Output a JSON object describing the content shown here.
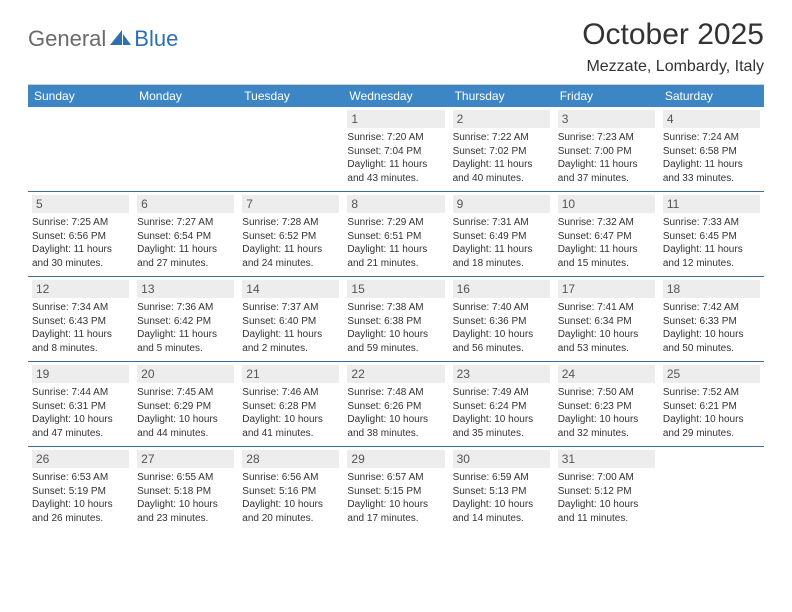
{
  "logo": {
    "part1": "General",
    "part2": "Blue"
  },
  "title": "October 2025",
  "location": "Mezzate, Lombardy, Italy",
  "colors": {
    "header_bg": "#3d86c6",
    "header_text": "#ffffff",
    "row_border": "#3d6a9a",
    "daynum_bg": "#ededed",
    "daynum_text": "#555555",
    "body_text": "#333333",
    "logo_gray": "#6a6a6a",
    "logo_blue": "#2f6fb0"
  },
  "day_headers": [
    "Sunday",
    "Monday",
    "Tuesday",
    "Wednesday",
    "Thursday",
    "Friday",
    "Saturday"
  ],
  "weeks": [
    [
      null,
      null,
      null,
      {
        "n": "1",
        "sunrise": "7:20 AM",
        "sunset": "7:04 PM",
        "daylight": "11 hours and 43 minutes."
      },
      {
        "n": "2",
        "sunrise": "7:22 AM",
        "sunset": "7:02 PM",
        "daylight": "11 hours and 40 minutes."
      },
      {
        "n": "3",
        "sunrise": "7:23 AM",
        "sunset": "7:00 PM",
        "daylight": "11 hours and 37 minutes."
      },
      {
        "n": "4",
        "sunrise": "7:24 AM",
        "sunset": "6:58 PM",
        "daylight": "11 hours and 33 minutes."
      }
    ],
    [
      {
        "n": "5",
        "sunrise": "7:25 AM",
        "sunset": "6:56 PM",
        "daylight": "11 hours and 30 minutes."
      },
      {
        "n": "6",
        "sunrise": "7:27 AM",
        "sunset": "6:54 PM",
        "daylight": "11 hours and 27 minutes."
      },
      {
        "n": "7",
        "sunrise": "7:28 AM",
        "sunset": "6:52 PM",
        "daylight": "11 hours and 24 minutes."
      },
      {
        "n": "8",
        "sunrise": "7:29 AM",
        "sunset": "6:51 PM",
        "daylight": "11 hours and 21 minutes."
      },
      {
        "n": "9",
        "sunrise": "7:31 AM",
        "sunset": "6:49 PM",
        "daylight": "11 hours and 18 minutes."
      },
      {
        "n": "10",
        "sunrise": "7:32 AM",
        "sunset": "6:47 PM",
        "daylight": "11 hours and 15 minutes."
      },
      {
        "n": "11",
        "sunrise": "7:33 AM",
        "sunset": "6:45 PM",
        "daylight": "11 hours and 12 minutes."
      }
    ],
    [
      {
        "n": "12",
        "sunrise": "7:34 AM",
        "sunset": "6:43 PM",
        "daylight": "11 hours and 8 minutes."
      },
      {
        "n": "13",
        "sunrise": "7:36 AM",
        "sunset": "6:42 PM",
        "daylight": "11 hours and 5 minutes."
      },
      {
        "n": "14",
        "sunrise": "7:37 AM",
        "sunset": "6:40 PM",
        "daylight": "11 hours and 2 minutes."
      },
      {
        "n": "15",
        "sunrise": "7:38 AM",
        "sunset": "6:38 PM",
        "daylight": "10 hours and 59 minutes."
      },
      {
        "n": "16",
        "sunrise": "7:40 AM",
        "sunset": "6:36 PM",
        "daylight": "10 hours and 56 minutes."
      },
      {
        "n": "17",
        "sunrise": "7:41 AM",
        "sunset": "6:34 PM",
        "daylight": "10 hours and 53 minutes."
      },
      {
        "n": "18",
        "sunrise": "7:42 AM",
        "sunset": "6:33 PM",
        "daylight": "10 hours and 50 minutes."
      }
    ],
    [
      {
        "n": "19",
        "sunrise": "7:44 AM",
        "sunset": "6:31 PM",
        "daylight": "10 hours and 47 minutes."
      },
      {
        "n": "20",
        "sunrise": "7:45 AM",
        "sunset": "6:29 PM",
        "daylight": "10 hours and 44 minutes."
      },
      {
        "n": "21",
        "sunrise": "7:46 AM",
        "sunset": "6:28 PM",
        "daylight": "10 hours and 41 minutes."
      },
      {
        "n": "22",
        "sunrise": "7:48 AM",
        "sunset": "6:26 PM",
        "daylight": "10 hours and 38 minutes."
      },
      {
        "n": "23",
        "sunrise": "7:49 AM",
        "sunset": "6:24 PM",
        "daylight": "10 hours and 35 minutes."
      },
      {
        "n": "24",
        "sunrise": "7:50 AM",
        "sunset": "6:23 PM",
        "daylight": "10 hours and 32 minutes."
      },
      {
        "n": "25",
        "sunrise": "7:52 AM",
        "sunset": "6:21 PM",
        "daylight": "10 hours and 29 minutes."
      }
    ],
    [
      {
        "n": "26",
        "sunrise": "6:53 AM",
        "sunset": "5:19 PM",
        "daylight": "10 hours and 26 minutes."
      },
      {
        "n": "27",
        "sunrise": "6:55 AM",
        "sunset": "5:18 PM",
        "daylight": "10 hours and 23 minutes."
      },
      {
        "n": "28",
        "sunrise": "6:56 AM",
        "sunset": "5:16 PM",
        "daylight": "10 hours and 20 minutes."
      },
      {
        "n": "29",
        "sunrise": "6:57 AM",
        "sunset": "5:15 PM",
        "daylight": "10 hours and 17 minutes."
      },
      {
        "n": "30",
        "sunrise": "6:59 AM",
        "sunset": "5:13 PM",
        "daylight": "10 hours and 14 minutes."
      },
      {
        "n": "31",
        "sunrise": "7:00 AM",
        "sunset": "5:12 PM",
        "daylight": "10 hours and 11 minutes."
      },
      null
    ]
  ],
  "labels": {
    "sunrise": "Sunrise:",
    "sunset": "Sunset:",
    "daylight": "Daylight:"
  }
}
